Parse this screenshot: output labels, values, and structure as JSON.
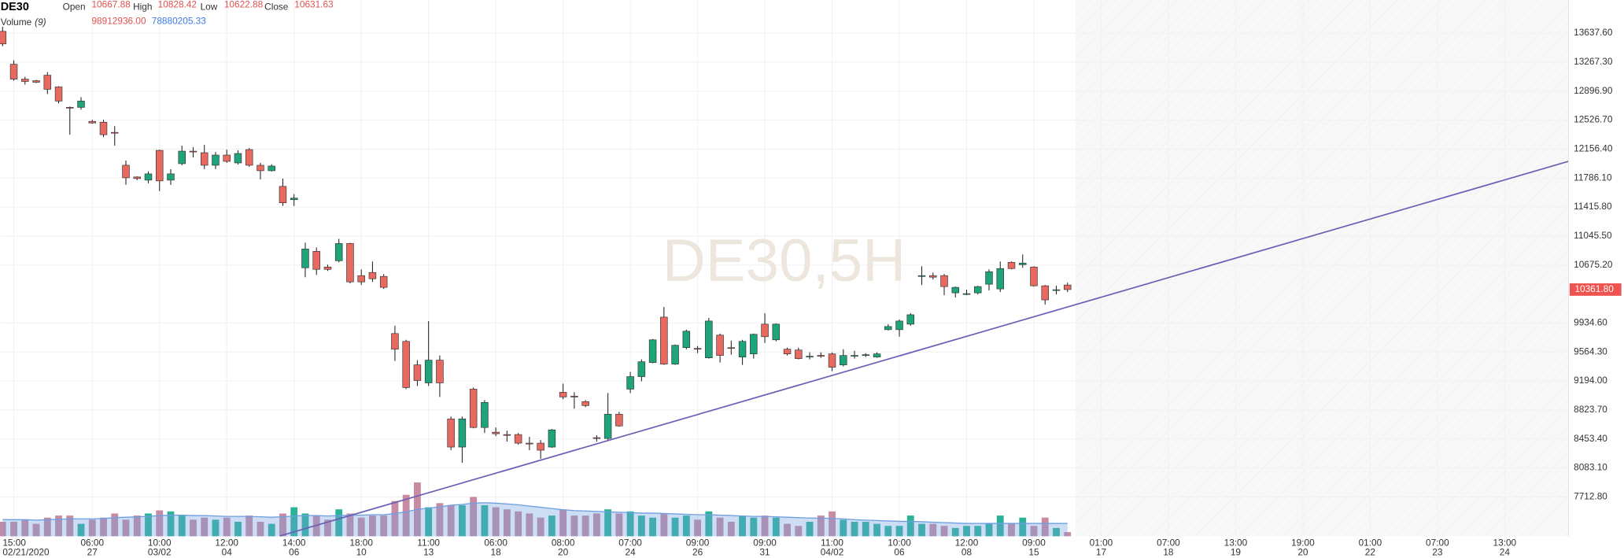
{
  "chart_data": {
    "type": "candlestick",
    "watermark": "DE30,5H",
    "legend": {
      "symbol": "DE30",
      "open_label": "Open",
      "open": "10667.88",
      "high_label": "High",
      "high": "10828.42",
      "low_label": "Low",
      "low": "10622.88",
      "close_label": "Close",
      "close": "10631.63",
      "volume_label": "Volume",
      "volume_period": "(9)",
      "volume_value": "98912936.00",
      "volume_ma_value": "78880205.33"
    },
    "up_color": "#1fa37a",
    "down_color": "#e8695f",
    "volume_up_color": "#2bb39a",
    "volume_down_color": "#c98aa3",
    "ma_color": "#6f9fe0",
    "trendline_color": "#6a5fb5",
    "grid": true,
    "xlim": [
      -0.18,
      139.7
    ],
    "ylim": [
      7210.6,
      14060.8
    ],
    "yticks": [
      {
        "value": 13637.6,
        "label": "13637.60"
      },
      {
        "value": 13267.3,
        "label": "13267.30"
      },
      {
        "value": 12896.9,
        "label": "12896.90"
      },
      {
        "value": 12526.7,
        "label": "12526.70"
      },
      {
        "value": 12156.4,
        "label": "12156.40"
      },
      {
        "value": 11786.1,
        "label": "11786.10"
      },
      {
        "value": 11415.8,
        "label": "11415.80"
      },
      {
        "value": 11045.5,
        "label": "11045.50"
      },
      {
        "value": 10675.2,
        "label": "10675.20"
      },
      {
        "value": 9934.6,
        "label": "9934.60"
      },
      {
        "value": 9564.3,
        "label": "9564.30"
      },
      {
        "value": 9194,
        "label": "9194.00"
      },
      {
        "value": 8823.7,
        "label": "8823.70"
      },
      {
        "value": 8453.4,
        "label": "8453.40"
      },
      {
        "value": 8083.1,
        "label": "8083.10"
      },
      {
        "value": 7712.8,
        "label": "7712.80"
      }
    ],
    "xticks": [
      {
        "value": 1,
        "label": "15:00"
      },
      {
        "value": 8,
        "label": "06:00"
      },
      {
        "value": 14,
        "label": "10:00"
      },
      {
        "value": 20,
        "label": "12:00"
      },
      {
        "value": 26,
        "label": "14:00"
      },
      {
        "value": 32,
        "label": "18:00"
      },
      {
        "value": 38,
        "label": "11:00"
      },
      {
        "value": 44,
        "label": "06:00"
      },
      {
        "value": 50,
        "label": "08:00"
      },
      {
        "value": 56,
        "label": "07:00"
      },
      {
        "value": 62,
        "label": "09:00"
      },
      {
        "value": 68,
        "label": "09:00"
      },
      {
        "value": 74,
        "label": "11:00"
      },
      {
        "value": 80,
        "label": "10:00"
      },
      {
        "value": 86,
        "label": "12:00"
      },
      {
        "value": 92,
        "label": "09:00"
      },
      {
        "value": 98,
        "label": "01:00"
      },
      {
        "value": 104,
        "label": "07:00"
      },
      {
        "value": 110,
        "label": "13:00"
      },
      {
        "value": 116,
        "label": "19:00"
      },
      {
        "value": 122,
        "label": "01:00"
      },
      {
        "value": 128,
        "label": "07:00"
      },
      {
        "value": 134,
        "label": "13:00"
      }
    ],
    "xtick_dates": [
      "02/21/2020",
      "27",
      "03/02",
      "04",
      "06",
      "10",
      "13",
      "18",
      "20",
      "24",
      "26",
      "31",
      "04/02",
      "06",
      "08",
      "15",
      "17",
      "18",
      "19",
      "20",
      "22",
      "23",
      "24"
    ],
    "last_price": {
      "value": 10361.8,
      "label": "10361.80"
    },
    "x": [
      0,
      1,
      2,
      3,
      4,
      5,
      6,
      7,
      8,
      9,
      10,
      11,
      12,
      13,
      14,
      15,
      16,
      17,
      18,
      19,
      20,
      21,
      22,
      23,
      24,
      25,
      26,
      27,
      28,
      29,
      30,
      31,
      32,
      33,
      34,
      35,
      36,
      37,
      38,
      39,
      40,
      41,
      42,
      43,
      44,
      45,
      46,
      47,
      48,
      49,
      50,
      51,
      52,
      53,
      54,
      55,
      56,
      57,
      58,
      59,
      60,
      61,
      62,
      63,
      64,
      65,
      66,
      67,
      68,
      69,
      70,
      71,
      72,
      73,
      74,
      75,
      76,
      77,
      78,
      79,
      80,
      81,
      82,
      83,
      84,
      85,
      86,
      87,
      88,
      89,
      90,
      91,
      92,
      93,
      94,
      95
    ],
    "open": [
      13660,
      13240,
      13050,
      13030,
      13100,
      12950,
      12690,
      12690,
      12510,
      12500,
      12370,
      11950,
      11800,
      11760,
      12140,
      11760,
      11970,
      12130,
      12110,
      11950,
      12080,
      11980,
      12150,
      11950,
      11880,
      11680,
      11510,
      10640,
      10850,
      10650,
      10730,
      10950,
      10540,
      10580,
      10530,
      9800,
      9700,
      9400,
      9170,
      9460,
      8710,
      8350,
      9090,
      8600,
      8540,
      8510,
      8510,
      8400,
      8400,
      8350,
      9050,
      9000,
      8930,
      8470,
      8460,
      8770,
      9090,
      9250,
      9430,
      10010,
      9410,
      9620,
      9610,
      9490,
      9780,
      9620,
      9500,
      9540,
      9920,
      9720,
      9600,
      9590,
      9510,
      9520,
      9540,
      9400,
      9510,
      9520,
      9500,
      9850,
      9850,
      9920,
      10530,
      10540,
      10540,
      10320,
      10310,
      10320,
      10430,
      10370,
      10710,
      10680,
      10650,
      10410,
      10360,
      10420
    ],
    "high": [
      13720,
      13290,
      13080,
      13040,
      13140,
      12960,
      12700,
      12820,
      12530,
      12530,
      12450,
      12010,
      11810,
      11870,
      12150,
      11900,
      12200,
      12180,
      12210,
      12120,
      12150,
      12140,
      12170,
      11980,
      11960,
      11780,
      11580,
      10960,
      10900,
      10680,
      11010,
      10960,
      10620,
      10720,
      10560,
      9900,
      9720,
      9460,
      9960,
      9520,
      8740,
      8740,
      9110,
      8950,
      8600,
      8560,
      8530,
      8480,
      8440,
      8580,
      9160,
      9050,
      8950,
      8500,
      9040,
      8800,
      9310,
      9470,
      9730,
      10140,
      9660,
      9850,
      9640,
      10000,
      9800,
      9710,
      9720,
      9800,
      10060,
      9930,
      9620,
      9620,
      9560,
      9560,
      9560,
      9600,
      9580,
      9550,
      9560,
      9920,
      9980,
      10060,
      10660,
      10580,
      10560,
      10400,
      10360,
      10410,
      10620,
      10720,
      10720,
      10810,
      10660,
      10420,
      10410,
      10450
    ],
    "low": [
      13470,
      13030,
      12980,
      13000,
      12860,
      12740,
      12340,
      12660,
      12480,
      12310,
      12200,
      11700,
      11760,
      11720,
      11620,
      11700,
      11950,
      12050,
      11900,
      11900,
      11980,
      11960,
      11930,
      11770,
      11870,
      11430,
      11430,
      10520,
      10550,
      10600,
      10710,
      10440,
      10420,
      10460,
      10370,
      9450,
      9090,
      9130,
      9130,
      8990,
      8310,
      8150,
      8590,
      8530,
      8490,
      8420,
      8380,
      8310,
      8200,
      8340,
      8960,
      8840,
      8860,
      8420,
      8440,
      8610,
      9040,
      9190,
      9420,
      9400,
      9400,
      9600,
      9550,
      9480,
      9430,
      9530,
      9400,
      9480,
      9680,
      9700,
      9520,
      9470,
      9470,
      9490,
      9320,
      9380,
      9480,
      9500,
      9490,
      9840,
      9760,
      9900,
      10420,
      10490,
      10290,
      10260,
      10290,
      10300,
      10350,
      10330,
      10620,
      10640,
      10400,
      10170,
      10300,
      10330
    ],
    "close": [
      13500,
      13050,
      13020,
      13010,
      12920,
      12770,
      12680,
      12770,
      12490,
      12340,
      12360,
      11790,
      11780,
      11840,
      11750,
      11840,
      12130,
      12120,
      11950,
      12080,
      12000,
      12100,
      11950,
      11880,
      11940,
      11470,
      11530,
      10880,
      10620,
      10620,
      10950,
      10460,
      10460,
      10500,
      10390,
      9600,
      9110,
      9200,
      9460,
      9170,
      8350,
      8710,
      8600,
      8920,
      8520,
      8500,
      8400,
      8390,
      8310,
      8570,
      8990,
      8990,
      8880,
      8460,
      8770,
      8620,
      9250,
      9440,
      9720,
      9410,
      9650,
      9830,
      9600,
      9960,
      9520,
      9610,
      9700,
      9790,
      9760,
      9920,
      9540,
      9480,
      9510,
      9510,
      9370,
      9520,
      9520,
      9530,
      9540,
      9890,
      9960,
      10040,
      10540,
      10520,
      10400,
      10390,
      10310,
      10400,
      10590,
      10630,
      10630,
      10700,
      10410,
      10230,
      10360,
      10361.8
    ],
    "volume": {
      "ylim": [
        0,
        400000000
      ],
      "values": [
        70000000,
        70000000,
        80000000,
        60000000,
        90000000,
        100000000,
        100000000,
        60000000,
        80000000,
        90000000,
        110000000,
        80000000,
        100000000,
        110000000,
        125000000,
        120000000,
        100000000,
        80000000,
        90000000,
        80000000,
        90000000,
        70000000,
        100000000,
        70000000,
        60000000,
        110000000,
        140000000,
        110000000,
        100000000,
        80000000,
        130000000,
        110000000,
        90000000,
        100000000,
        100000000,
        170000000,
        200000000,
        260000000,
        140000000,
        160000000,
        150000000,
        150000000,
        190000000,
        150000000,
        140000000,
        130000000,
        120000000,
        110000000,
        90000000,
        100000000,
        130000000,
        100000000,
        100000000,
        110000000,
        130000000,
        110000000,
        120000000,
        100000000,
        90000000,
        110000000,
        90000000,
        100000000,
        80000000,
        120000000,
        90000000,
        70000000,
        100000000,
        90000000,
        100000000,
        90000000,
        60000000,
        50000000,
        70000000,
        100000000,
        120000000,
        80000000,
        70000000,
        70000000,
        60000000,
        50000000,
        50000000,
        100000000,
        60000000,
        60000000,
        50000000,
        40000000,
        50000000,
        50000000,
        60000000,
        100000000,
        60000000,
        90000000,
        50000000,
        90000000,
        40000000,
        20000000
      ],
      "ma": [
        80000000,
        80000000,
        80000000,
        78000000,
        80000000,
        82000000,
        84000000,
        84000000,
        84000000,
        86000000,
        90000000,
        92000000,
        94000000,
        96000000,
        100000000,
        102000000,
        102000000,
        100000000,
        100000000,
        98000000,
        96000000,
        96000000,
        96000000,
        94000000,
        92000000,
        94000000,
        98000000,
        100000000,
        100000000,
        98000000,
        100000000,
        102000000,
        102000000,
        104000000,
        104000000,
        110000000,
        118000000,
        130000000,
        136000000,
        142000000,
        150000000,
        154000000,
        160000000,
        162000000,
        160000000,
        156000000,
        152000000,
        146000000,
        140000000,
        134000000,
        128000000,
        124000000,
        122000000,
        120000000,
        118000000,
        116000000,
        114000000,
        112000000,
        112000000,
        110000000,
        108000000,
        106000000,
        104000000,
        104000000,
        102000000,
        100000000,
        98000000,
        96000000,
        96000000,
        94000000,
        92000000,
        90000000,
        88000000,
        88000000,
        86000000,
        84000000,
        80000000,
        78000000,
        76000000,
        74000000,
        72000000,
        72000000,
        70000000,
        68000000,
        66000000,
        64000000,
        62000000,
        62000000,
        62000000,
        62000000,
        62000000,
        62000000,
        62000000,
        62000000,
        62000000,
        62000000
      ]
    },
    "trendline": {
      "x": [
        24.75,
        139.7
      ],
      "y": [
        7215,
        12000
      ]
    }
  }
}
